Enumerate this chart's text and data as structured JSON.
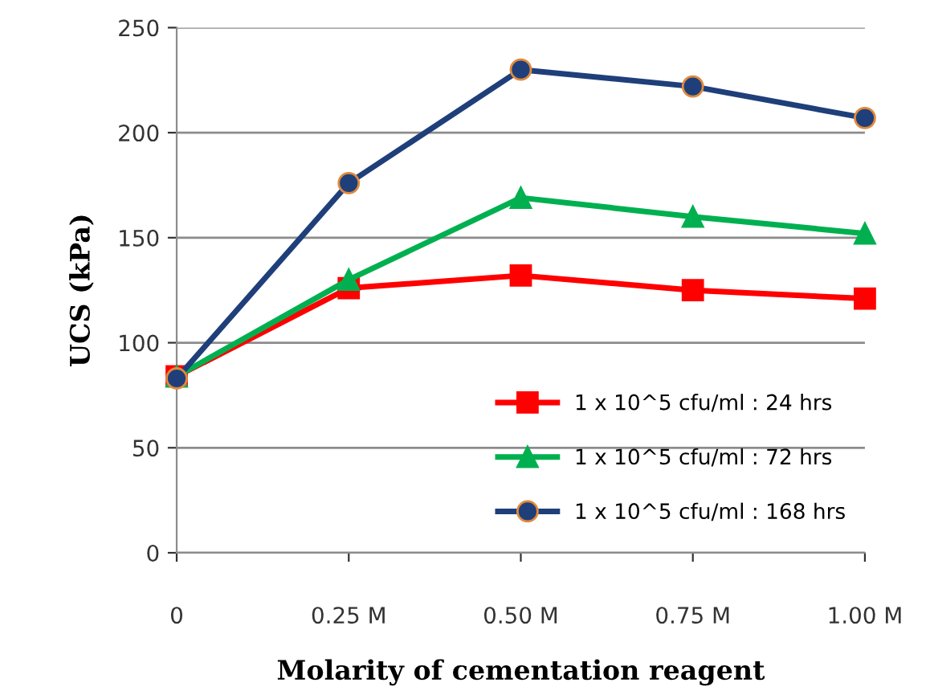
{
  "chart_data": {
    "type": "line",
    "xlabel": "Molarity of cementation reagent",
    "ylabel": "UCS (kPa)",
    "categories": [
      "0",
      "0.25 M",
      "0.50 M",
      "0.75 M",
      "1.00 M"
    ],
    "series": [
      {
        "name": "1 x 10^5 cfu/ml : 24 hrs",
        "color": "#ff0000",
        "marker": "square",
        "values": [
          84,
          126,
          132,
          125,
          121
        ]
      },
      {
        "name": "1 x 10^5 cfu/ml : 72 hrs",
        "color": "#00b050",
        "marker": "triangle",
        "values": [
          84,
          130,
          169,
          160,
          152
        ]
      },
      {
        "name": "1 x 10^5 cfu/ml : 168 hrs",
        "color": "#1f3f7a",
        "marker": "circle",
        "values": [
          83,
          176,
          230,
          222,
          207
        ]
      }
    ],
    "ylim": [
      0,
      250
    ],
    "yticks": [
      0,
      50,
      100,
      150,
      200,
      250
    ],
    "grid": "y",
    "legend": "bottom right",
    "line_style": "solid"
  }
}
